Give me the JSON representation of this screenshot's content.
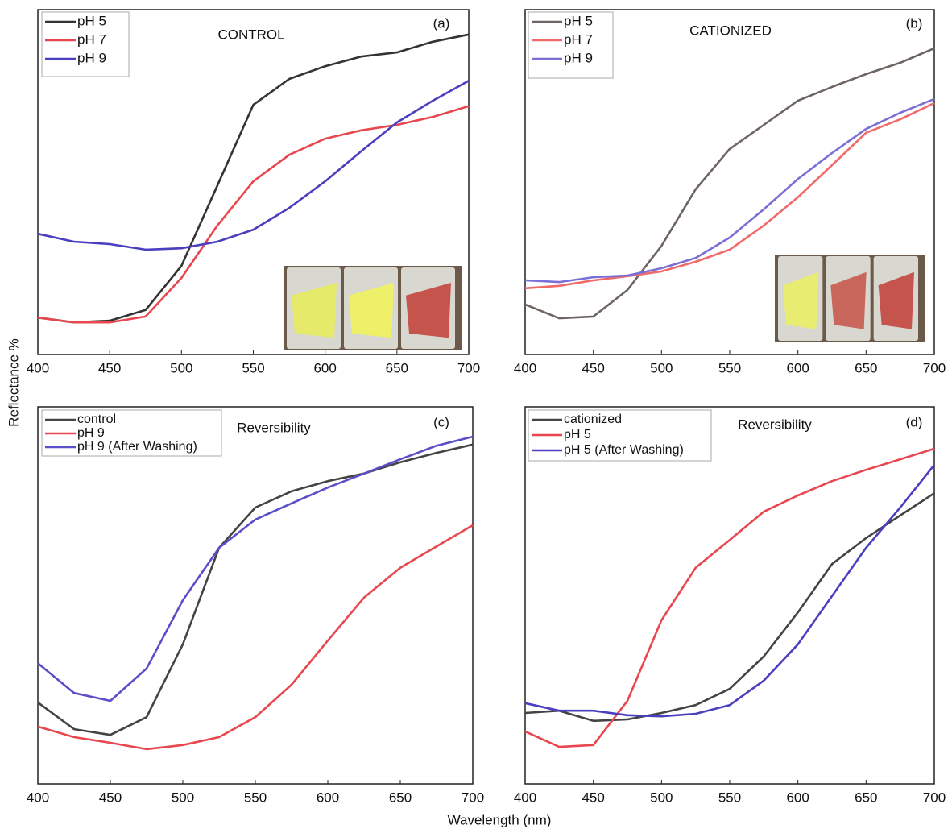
{
  "ylabel": "Reflectance %",
  "xlabel": "Wavelength (nm)",
  "chart_data": [
    {
      "type": "line",
      "title": "CONTROL",
      "panel": "(a)",
      "x": [
        400,
        425,
        450,
        475,
        500,
        525,
        550,
        575,
        600,
        625,
        650,
        675,
        700
      ],
      "xlim": [
        400,
        700
      ],
      "xticks": [
        400,
        450,
        500,
        550,
        600,
        650,
        700
      ],
      "ylim": [
        0,
        100
      ],
      "series": [
        {
          "name": "pH 5",
          "color": "#333333",
          "values": [
            10.7,
            9.3,
            9.8,
            12.9,
            25.7,
            49,
            72.4,
            79.9,
            83.6,
            86.4,
            87.6,
            90.7,
            92.8
          ]
        },
        {
          "name": "pH 7",
          "color": "#e8474f",
          "values": [
            10.7,
            9.3,
            9.3,
            11,
            22.2,
            37.4,
            50.2,
            57.9,
            62.6,
            65,
            66.6,
            68.9,
            72
          ]
        },
        {
          "name": "pH 9",
          "color": "#4a3fbf",
          "values": [
            35,
            32.7,
            32,
            30.4,
            30.8,
            32.7,
            36.2,
            42.5,
            50.2,
            58.9,
            67.3,
            73.6,
            79.4
          ]
        }
      ]
    },
    {
      "type": "line",
      "title": "CATIONIZED",
      "panel": "(b)",
      "x": [
        400,
        425,
        450,
        475,
        500,
        525,
        550,
        575,
        600,
        625,
        650,
        675,
        700
      ],
      "xlim": [
        400,
        700
      ],
      "xticks": [
        400,
        450,
        500,
        550,
        600,
        650,
        700
      ],
      "ylim": [
        0,
        100
      ],
      "series": [
        {
          "name": "pH 5",
          "color": "#6e6563",
          "values": [
            14.5,
            10.5,
            11,
            18.7,
            31.5,
            47.9,
            59.6,
            66.6,
            73.6,
            77.6,
            81.3,
            84.6,
            88.8
          ]
        },
        {
          "name": "pH 7",
          "color": "#f06a6a",
          "values": [
            19.2,
            19.9,
            21.5,
            22.7,
            24.1,
            26.9,
            30.4,
            37.4,
            45.6,
            54.9,
            64.3,
            68.2,
            72.9
          ]
        },
        {
          "name": "pH 9",
          "color": "#7a6fd6",
          "values": [
            21.5,
            21,
            22.4,
            22.9,
            25,
            28,
            33.9,
            42.1,
            50.9,
            58.4,
            65.4,
            70.1,
            74.1
          ]
        }
      ]
    },
    {
      "type": "line",
      "title": "Reversibility",
      "panel": "(c)",
      "x": [
        400,
        425,
        450,
        475,
        500,
        525,
        550,
        575,
        600,
        625,
        650,
        675,
        700
      ],
      "xlim": [
        400,
        700
      ],
      "xticks": [
        400,
        450,
        500,
        550,
        600,
        650,
        700
      ],
      "ylim": [
        0,
        100
      ],
      "series": [
        {
          "name": "control",
          "color": "#444444",
          "values": [
            21.6,
            14.5,
            13,
            17.7,
            37,
            62.6,
            73.3,
            77.6,
            80.3,
            82.3,
            85.3,
            87.8,
            90
          ]
        },
        {
          "name": "pH 9",
          "color": "#e8474f",
          "values": [
            15.2,
            12.4,
            10.9,
            9.2,
            10.3,
            12.4,
            17.7,
            26.3,
            38,
            49.4,
            57.3,
            63,
            68.6
          ]
        },
        {
          "name": "pH 9 (After Washing)",
          "color": "#5a4fc8",
          "values": [
            32,
            24.1,
            22,
            30.6,
            48.7,
            62.6,
            70.1,
            74.4,
            78.6,
            82.3,
            86.1,
            89.7,
            92.1
          ]
        }
      ]
    },
    {
      "type": "line",
      "title": "Reversibility",
      "panel": "(d)",
      "x": [
        400,
        425,
        450,
        475,
        500,
        525,
        550,
        575,
        600,
        625,
        650,
        675,
        700
      ],
      "xlim": [
        400,
        700
      ],
      "xticks": [
        400,
        450,
        500,
        550,
        600,
        650,
        700
      ],
      "ylim": [
        0,
        100
      ],
      "series": [
        {
          "name": "cationized",
          "color": "#444444",
          "values": [
            18.8,
            19.4,
            16.7,
            17.1,
            18.8,
            20.9,
            25.2,
            33.8,
            45.5,
            58.3,
            65.2,
            71.2,
            77.1
          ]
        },
        {
          "name": "pH 5",
          "color": "#e8474f",
          "values": [
            13.9,
            9.8,
            10.3,
            22,
            43.4,
            57.3,
            64.7,
            72.2,
            76.5,
            80.3,
            83.3,
            86.1,
            88.9
          ]
        },
        {
          "name": "pH 5 (After Washing)",
          "color": "#4a3fbf",
          "values": [
            21.4,
            19.4,
            19.4,
            18.2,
            17.9,
            18.6,
            20.9,
            27.4,
            37,
            49.8,
            62.6,
            73.3,
            84.6
          ]
        }
      ]
    }
  ]
}
